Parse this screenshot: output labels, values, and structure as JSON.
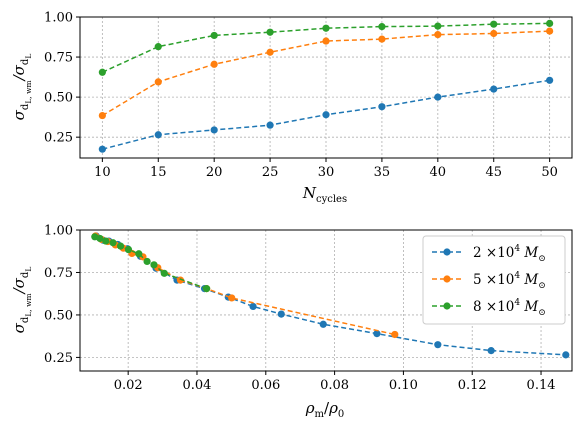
{
  "colors": {
    "blue": "#1f77b4",
    "orange": "#ff7f0e",
    "green": "#2ca02c"
  },
  "chart_data": [
    {
      "type": "line",
      "x_label": {
        "main": "N",
        "sub": "cycles"
      },
      "y_label": {
        "main": "σ",
        "num_sub": "d",
        "num_subsub": "L, wm",
        "den_sub": "d",
        "den_subsub": "L"
      },
      "xlim": [
        8,
        52
      ],
      "ylim": [
        0.12,
        1.0
      ],
      "xticks": [
        "10",
        "15",
        "20",
        "25",
        "30",
        "35",
        "40",
        "45",
        "50"
      ],
      "xtick_values": [
        10,
        15,
        20,
        25,
        30,
        35,
        40,
        45,
        50
      ],
      "yticks": [
        "0.25",
        "0.50",
        "0.75",
        "1.00"
      ],
      "ytick_values": [
        0.25,
        0.5,
        0.75,
        1.0
      ],
      "grid": true,
      "series": [
        {
          "color_key": "green",
          "x": [
            10,
            15,
            20,
            25,
            30,
            35,
            40,
            45,
            50
          ],
          "y": [
            0.655,
            0.815,
            0.885,
            0.905,
            0.93,
            0.94,
            0.943,
            0.955,
            0.96
          ]
        },
        {
          "color_key": "orange",
          "x": [
            10,
            15,
            20,
            25,
            30,
            35,
            40,
            45,
            50
          ],
          "y": [
            0.385,
            0.595,
            0.705,
            0.78,
            0.85,
            0.862,
            0.89,
            0.897,
            0.912
          ]
        },
        {
          "color_key": "blue",
          "x": [
            10,
            15,
            20,
            25,
            30,
            35,
            40,
            45,
            50
          ],
          "y": [
            0.175,
            0.265,
            0.295,
            0.325,
            0.39,
            0.44,
            0.5,
            0.55,
            0.605
          ]
        }
      ]
    },
    {
      "type": "line",
      "x_label": {
        "main": "ρ",
        "sub": "m",
        "slash": "/",
        "main2": "ρ",
        "sub2": "0"
      },
      "y_label": {
        "main": "σ",
        "num_sub": "d",
        "num_subsub": "L, wm",
        "den_sub": "d",
        "den_subsub": "L"
      },
      "xlim": [
        0.006,
        0.149
      ],
      "ylim": [
        0.17,
        1.0
      ],
      "xticks": [
        "0.02",
        "0.04",
        "0.06",
        "0.08",
        "0.10",
        "0.12",
        "0.14"
      ],
      "xtick_values": [
        0.02,
        0.04,
        0.06,
        0.08,
        0.1,
        0.12,
        0.14
      ],
      "yticks": [
        "0.25",
        "0.50",
        "0.75",
        "1.00"
      ],
      "ytick_values": [
        0.25,
        0.5,
        0.75,
        1.0
      ],
      "grid": true,
      "legend_position": "top-right",
      "series": [
        {
          "name_prefix": "2 ×10",
          "exp": "4",
          "name_suffix": "M",
          "sun_sub": "⊙",
          "color_key": "blue",
          "x": [
            0.0107,
            0.0127,
            0.0144,
            0.017,
            0.0198,
            0.0236,
            0.0281,
            0.0342,
            0.0422,
            0.0491,
            0.0563,
            0.0645,
            0.0767,
            0.0923,
            0.11,
            0.1255,
            0.1472
          ],
          "y": [
            0.965,
            0.94,
            0.935,
            0.915,
            0.89,
            0.845,
            0.775,
            0.705,
            0.655,
            0.605,
            0.55,
            0.505,
            0.445,
            0.39,
            0.325,
            0.29,
            0.265
          ]
        },
        {
          "name_prefix": "5 ×10",
          "exp": "4",
          "name_suffix": "M",
          "sun_sub": "⊙",
          "color_key": "orange",
          "x": [
            0.0105,
            0.0122,
            0.0141,
            0.0163,
            0.0186,
            0.0211,
            0.0243,
            0.0286,
            0.0352,
            0.0428,
            0.0501,
            0.0975
          ],
          "y": [
            0.965,
            0.945,
            0.932,
            0.912,
            0.893,
            0.862,
            0.842,
            0.778,
            0.705,
            0.655,
            0.6,
            0.385
          ]
        },
        {
          "name_prefix": "8 ×10",
          "exp": "4",
          "name_suffix": "M",
          "sun_sub": "⊙",
          "color_key": "green",
          "x": [
            0.0103,
            0.0118,
            0.0135,
            0.0156,
            0.0178,
            0.0201,
            0.0231,
            0.0255,
            0.0275,
            0.0305,
            0.0428
          ],
          "y": [
            0.96,
            0.95,
            0.935,
            0.925,
            0.905,
            0.885,
            0.86,
            0.815,
            0.795,
            0.745,
            0.655
          ]
        }
      ]
    }
  ]
}
